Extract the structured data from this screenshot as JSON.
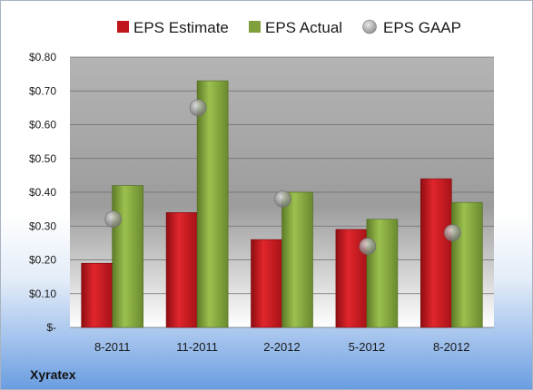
{
  "chart_data": {
    "type": "bar",
    "categories": [
      "8-2011",
      "11-2011",
      "2-2012",
      "5-2012",
      "8-2012"
    ],
    "series": [
      {
        "name": "EPS Estimate",
        "type": "bar",
        "color": "#c0171d",
        "values": [
          0.19,
          0.34,
          0.26,
          0.29,
          0.44
        ]
      },
      {
        "name": "EPS Actual",
        "type": "bar",
        "color": "#7fa03a",
        "values": [
          0.42,
          0.73,
          0.4,
          0.32,
          0.37
        ]
      },
      {
        "name": "EPS GAAP",
        "type": "scatter",
        "color": "#9a9a9a",
        "values": [
          0.32,
          0.65,
          0.38,
          0.24,
          0.28
        ]
      }
    ],
    "ylim": [
      0,
      0.8
    ],
    "yticks": [
      0,
      0.1,
      0.2,
      0.3,
      0.4,
      0.5,
      0.6,
      0.7,
      0.8
    ],
    "ytick_labels": [
      "$-",
      "$0.10",
      "$0.20",
      "$0.30",
      "$0.40",
      "$0.50",
      "$0.60",
      "$0.70",
      "$0.80"
    ],
    "grid": true,
    "legend_position": "top"
  },
  "company": "Xyratex"
}
